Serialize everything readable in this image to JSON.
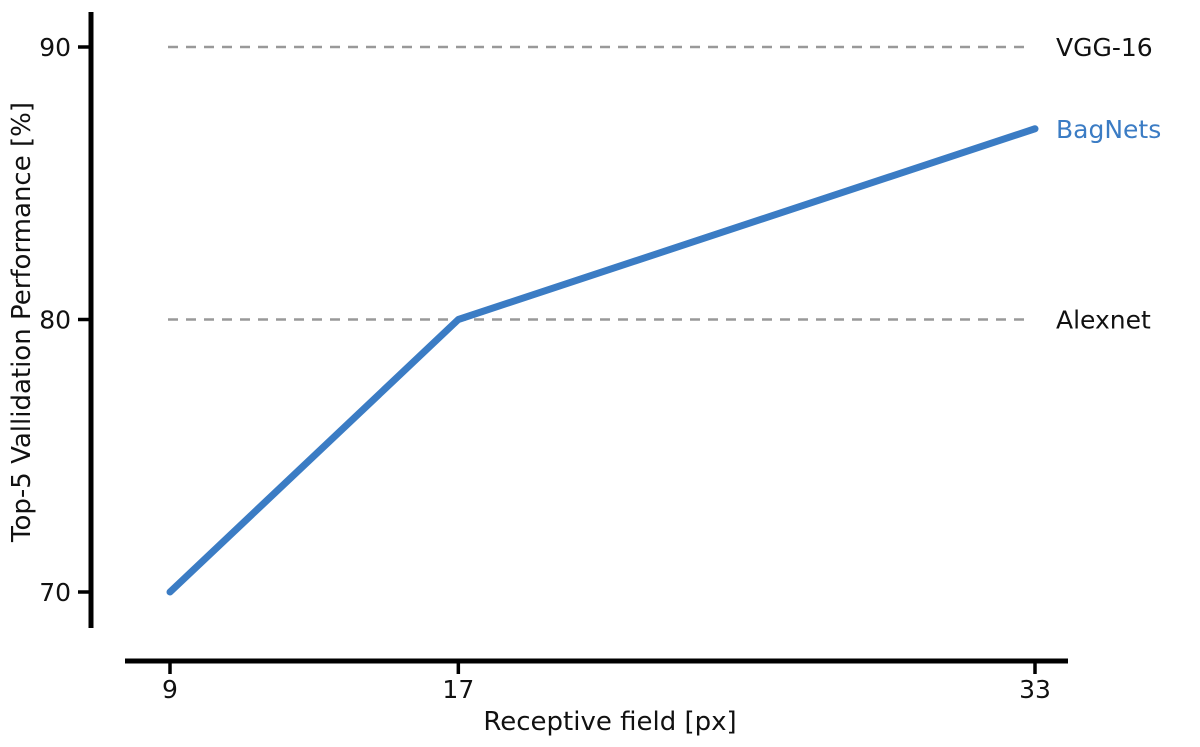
{
  "chart_data": {
    "type": "line",
    "title": "",
    "xlabel": "Receptive field [px]",
    "ylabel": "Top-5 Vallidation Performance [%]",
    "x": [
      9,
      17,
      33
    ],
    "xticks": [
      "9",
      "17",
      "33"
    ],
    "yticks": [
      "70",
      "80",
      "90"
    ],
    "ytick_values": [
      70,
      80,
      90
    ],
    "xtick_values": [
      9,
      17,
      33
    ],
    "xlim": [
      9,
      33
    ],
    "ylim": [
      70,
      90
    ],
    "grid": false,
    "legend_position": "right-annotations",
    "series": [
      {
        "name": "BagNets",
        "values": [
          70,
          80,
          87
        ],
        "color": "#3b7cc4",
        "label_color": "#3b7cc4"
      }
    ],
    "reference_lines": [
      {
        "label": "VGG-16",
        "value": 90,
        "color": "#999999",
        "style": "dashed",
        "label_color": "#111111"
      },
      {
        "label": "Alexnet",
        "value": 80,
        "color": "#999999",
        "style": "dashed",
        "label_color": "#111111"
      }
    ],
    "colors": {
      "axis": "#000000",
      "tick_text": "#111111",
      "background": "#ffffff"
    }
  }
}
